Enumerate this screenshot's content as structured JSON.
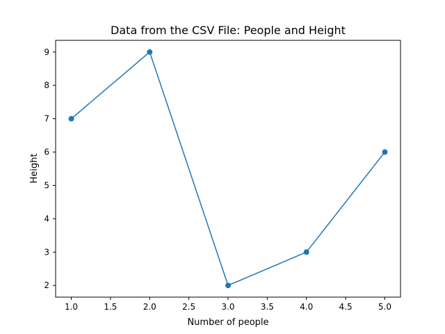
{
  "chart_data": {
    "type": "line",
    "title": "Data from the CSV File: People and Height",
    "xlabel": "Number of people",
    "ylabel": "Height",
    "xlim": [
      0.8,
      5.2
    ],
    "ylim": [
      1.65,
      9.35
    ],
    "xticks": [
      1.0,
      1.5,
      2.0,
      2.5,
      3.0,
      3.5,
      4.0,
      4.5,
      5.0
    ],
    "xtick_labels": [
      "1.0",
      "1.5",
      "2.0",
      "2.5",
      "3.0",
      "3.5",
      "4.0",
      "4.5",
      "5.0"
    ],
    "yticks": [
      2,
      3,
      4,
      5,
      6,
      7,
      8,
      9
    ],
    "ytick_labels": [
      "2",
      "3",
      "4",
      "5",
      "6",
      "7",
      "8",
      "9"
    ],
    "grid": false,
    "series": [
      {
        "x": [
          1,
          2,
          3,
          4,
          5
        ],
        "y": [
          7,
          9,
          2,
          3,
          6
        ],
        "color": "#1f77b4",
        "marker": "circle"
      }
    ]
  }
}
